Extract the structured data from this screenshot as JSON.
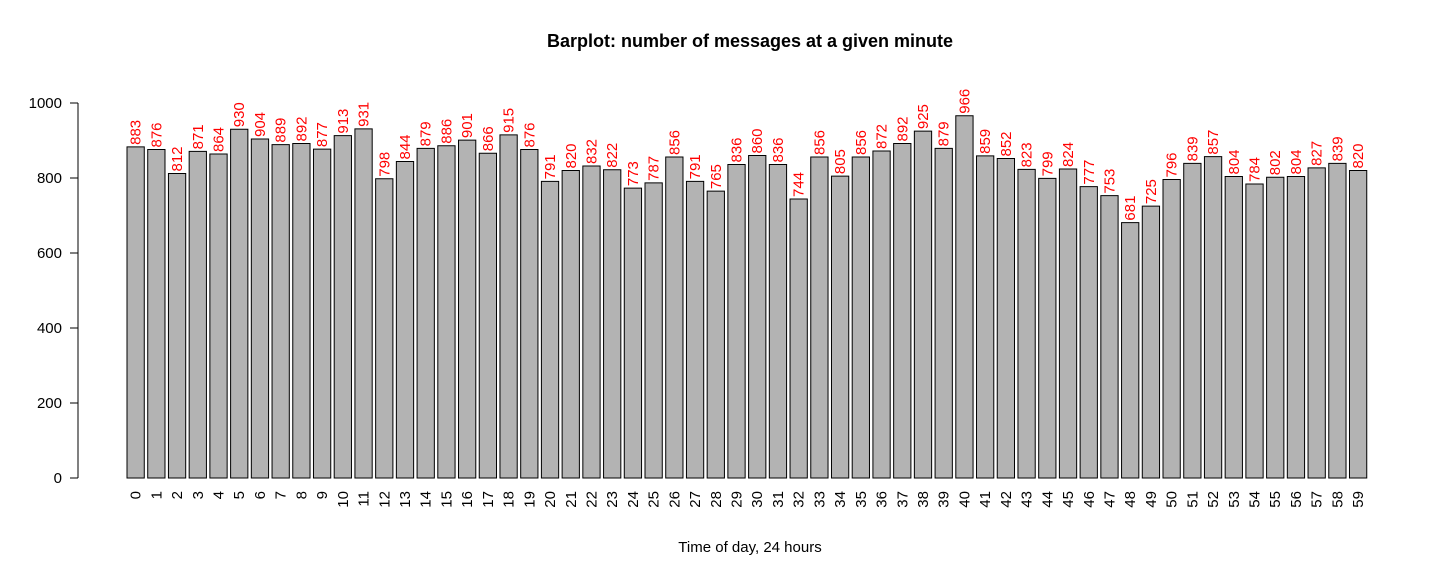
{
  "chart_data": {
    "type": "bar",
    "title": "Barplot: number of messages at a given minute",
    "xlabel": "Time of day, 24 hours",
    "ylabel": "",
    "ylim": [
      0,
      1000
    ],
    "yticks": [
      0,
      200,
      400,
      600,
      800,
      1000
    ],
    "grid": false,
    "categories": [
      "0",
      "1",
      "2",
      "3",
      "4",
      "5",
      "6",
      "7",
      "8",
      "9",
      "10",
      "11",
      "12",
      "13",
      "14",
      "15",
      "16",
      "17",
      "18",
      "19",
      "20",
      "21",
      "22",
      "23",
      "24",
      "25",
      "26",
      "27",
      "28",
      "29",
      "30",
      "31",
      "32",
      "33",
      "34",
      "35",
      "36",
      "37",
      "38",
      "39",
      "40",
      "41",
      "42",
      "43",
      "44",
      "45",
      "46",
      "47",
      "48",
      "49",
      "50",
      "51",
      "52",
      "53",
      "54",
      "55",
      "56",
      "57",
      "58",
      "59"
    ],
    "values": [
      883,
      876,
      812,
      871,
      864,
      930,
      904,
      889,
      892,
      877,
      913,
      931,
      798,
      844,
      879,
      886,
      901,
      866,
      915,
      876,
      791,
      820,
      832,
      822,
      773,
      787,
      856,
      791,
      765,
      836,
      860,
      836,
      744,
      856,
      805,
      856,
      872,
      892,
      925,
      879,
      966,
      859,
      852,
      823,
      799,
      824,
      777,
      753,
      681,
      725,
      796,
      839,
      857,
      804,
      784,
      802,
      804,
      827,
      839,
      820
    ],
    "bar_color": "#b3b3b3",
    "bar_border_color": "#000000",
    "data_label_color": "#ff0000",
    "axis_color": "#000000"
  }
}
